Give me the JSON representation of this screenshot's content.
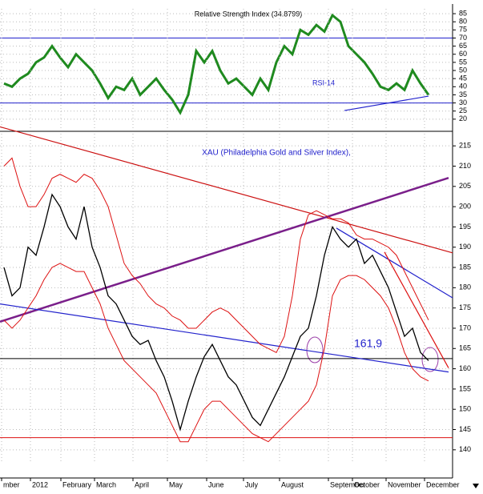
{
  "chart_data": [
    {
      "type": "line",
      "title": "Relative Strength Index (34.8799)",
      "annotation": "RSI-14",
      "x": [
        0,
        1,
        2,
        3,
        4,
        5,
        6,
        7,
        8,
        9,
        10,
        11,
        12,
        13,
        14,
        15,
        16,
        17,
        18,
        19,
        20,
        21,
        22,
        23,
        24,
        25,
        26,
        27,
        28,
        29,
        30,
        31,
        32,
        33,
        34,
        35,
        36,
        37,
        38,
        39,
        40,
        41,
        42,
        43,
        44,
        45,
        46,
        47,
        48,
        49,
        50,
        51,
        52,
        53
      ],
      "series": [
        {
          "name": "RSI-14",
          "color": "#1f8a1f",
          "values": [
            42,
            40,
            45,
            48,
            55,
            58,
            65,
            58,
            52,
            60,
            55,
            50,
            42,
            33,
            40,
            38,
            45,
            35,
            40,
            45,
            38,
            32,
            24,
            35,
            62,
            55,
            62,
            50,
            42,
            45,
            40,
            35,
            45,
            38,
            55,
            65,
            60,
            75,
            72,
            78,
            74,
            84,
            80,
            65,
            60,
            55,
            48,
            40,
            38,
            42,
            38,
            50,
            42,
            35
          ]
        }
      ],
      "hlines": [
        {
          "y": 70,
          "color": "#2222cc"
        },
        {
          "y": 30,
          "color": "#2222cc"
        }
      ],
      "lines": [
        {
          "x": [
            42.5,
            53
          ],
          "y": [
            25.3,
            34.2
          ],
          "color": "#2222cc"
        }
      ],
      "xlim": [
        -0.5,
        56
      ],
      "ylim": [
        14,
        88
      ],
      "yticks": [
        20,
        25,
        30,
        35,
        40,
        45,
        50,
        55,
        60,
        65,
        70,
        75,
        80,
        85
      ],
      "grid": true
    },
    {
      "type": "line",
      "title": "XAU (Philadelphia Gold and Silver Index),",
      "annotation": "161,9",
      "x": [
        0,
        1,
        2,
        3,
        4,
        5,
        6,
        7,
        8,
        9,
        10,
        11,
        12,
        13,
        14,
        15,
        16,
        17,
        18,
        19,
        20,
        21,
        22,
        23,
        24,
        25,
        26,
        27,
        28,
        29,
        30,
        31,
        32,
        33,
        34,
        35,
        36,
        37,
        38,
        39,
        40,
        41,
        42,
        43,
        44,
        45,
        46,
        47,
        48,
        49,
        50,
        51,
        52,
        53
      ],
      "series": [
        {
          "name": "XAU",
          "color": "#000000",
          "values": [
            185,
            178,
            180,
            190,
            188,
            195,
            203,
            200,
            195,
            192,
            200,
            190,
            185,
            178,
            176,
            172,
            168,
            166,
            167,
            162,
            158,
            152,
            145,
            152,
            158,
            163,
            166,
            162,
            158,
            156,
            152,
            148,
            146,
            150,
            154,
            158,
            163,
            168,
            170,
            178,
            188,
            195,
            192,
            190,
            192,
            186,
            188,
            184,
            180,
            174,
            168,
            170,
            164,
            162
          ]
        },
        {
          "name": "Upper band",
          "color": "#dd1111",
          "values": [
            210,
            212,
            205,
            200,
            200,
            203,
            207,
            208,
            207,
            206,
            208,
            207,
            204,
            200,
            193,
            186,
            183,
            181,
            178,
            176,
            175,
            173,
            172,
            170,
            170,
            172,
            174,
            175,
            174,
            172,
            170,
            168,
            166,
            165,
            164,
            168,
            178,
            192,
            198,
            199,
            198,
            197,
            197,
            196,
            193,
            192,
            192,
            191,
            190,
            188,
            184,
            180,
            176,
            172
          ]
        },
        {
          "name": "Lower band",
          "color": "#dd1111",
          "values": [
            172,
            170,
            172,
            175,
            178,
            182,
            185,
            186,
            185,
            184,
            184,
            180,
            176,
            170,
            166,
            162,
            160,
            158,
            156,
            154,
            150,
            146,
            142,
            142,
            146,
            150,
            152,
            152,
            150,
            148,
            146,
            144,
            143,
            142,
            144,
            146,
            148,
            150,
            152,
            156,
            165,
            178,
            182,
            183,
            183,
            182,
            180,
            178,
            175,
            170,
            164,
            160,
            158,
            157
          ]
        }
      ],
      "hlines": [
        {
          "y": 162.5,
          "color": "#000000"
        },
        {
          "y": 143,
          "color": "#dd1111"
        }
      ],
      "lines": [
        {
          "x": [
            -0.5,
            56
          ],
          "y": [
            219.7,
            188.6
          ],
          "color": "#cc1111"
        },
        {
          "x": [
            -0.5,
            55.5
          ],
          "y": [
            171.6,
            207.1
          ],
          "color": "#7a1f8a"
        },
        {
          "x": [
            -0.5,
            55.5
          ],
          "y": [
            176,
            159.2
          ],
          "color": "#2222cc"
        },
        {
          "x": [
            41.5,
            56
          ],
          "y": [
            194.7,
            177.5
          ],
          "color": "#2222cc"
        },
        {
          "x": [
            47.5,
            55.5
          ],
          "y": [
            188.8,
            160.2
          ],
          "color": "#dd1111"
        }
      ],
      "xlim": [
        -0.5,
        56
      ],
      "ylim": [
        137,
        218
      ],
      "yticks": [
        140,
        145,
        150,
        155,
        160,
        165,
        170,
        175,
        180,
        185,
        190,
        195,
        200,
        205,
        210,
        215
      ],
      "xticks": [
        {
          "value": -0.3,
          "label": "mber"
        },
        {
          "value": 3.3,
          "label": "2012"
        },
        {
          "value": 7.1,
          "label": "February"
        },
        {
          "value": 11.3,
          "label": "March"
        },
        {
          "value": 16.1,
          "label": "April"
        },
        {
          "value": 20.4,
          "label": "May"
        },
        {
          "value": 25.3,
          "label": "June"
        },
        {
          "value": 29.9,
          "label": "July"
        },
        {
          "value": 34.4,
          "label": "August"
        },
        {
          "value": 40.5,
          "label": "September"
        },
        {
          "value": 43.5,
          "label": "October"
        },
        {
          "value": 47.7,
          "label": "November"
        },
        {
          "value": 52.5,
          "label": "December"
        }
      ],
      "grid": true
    }
  ]
}
